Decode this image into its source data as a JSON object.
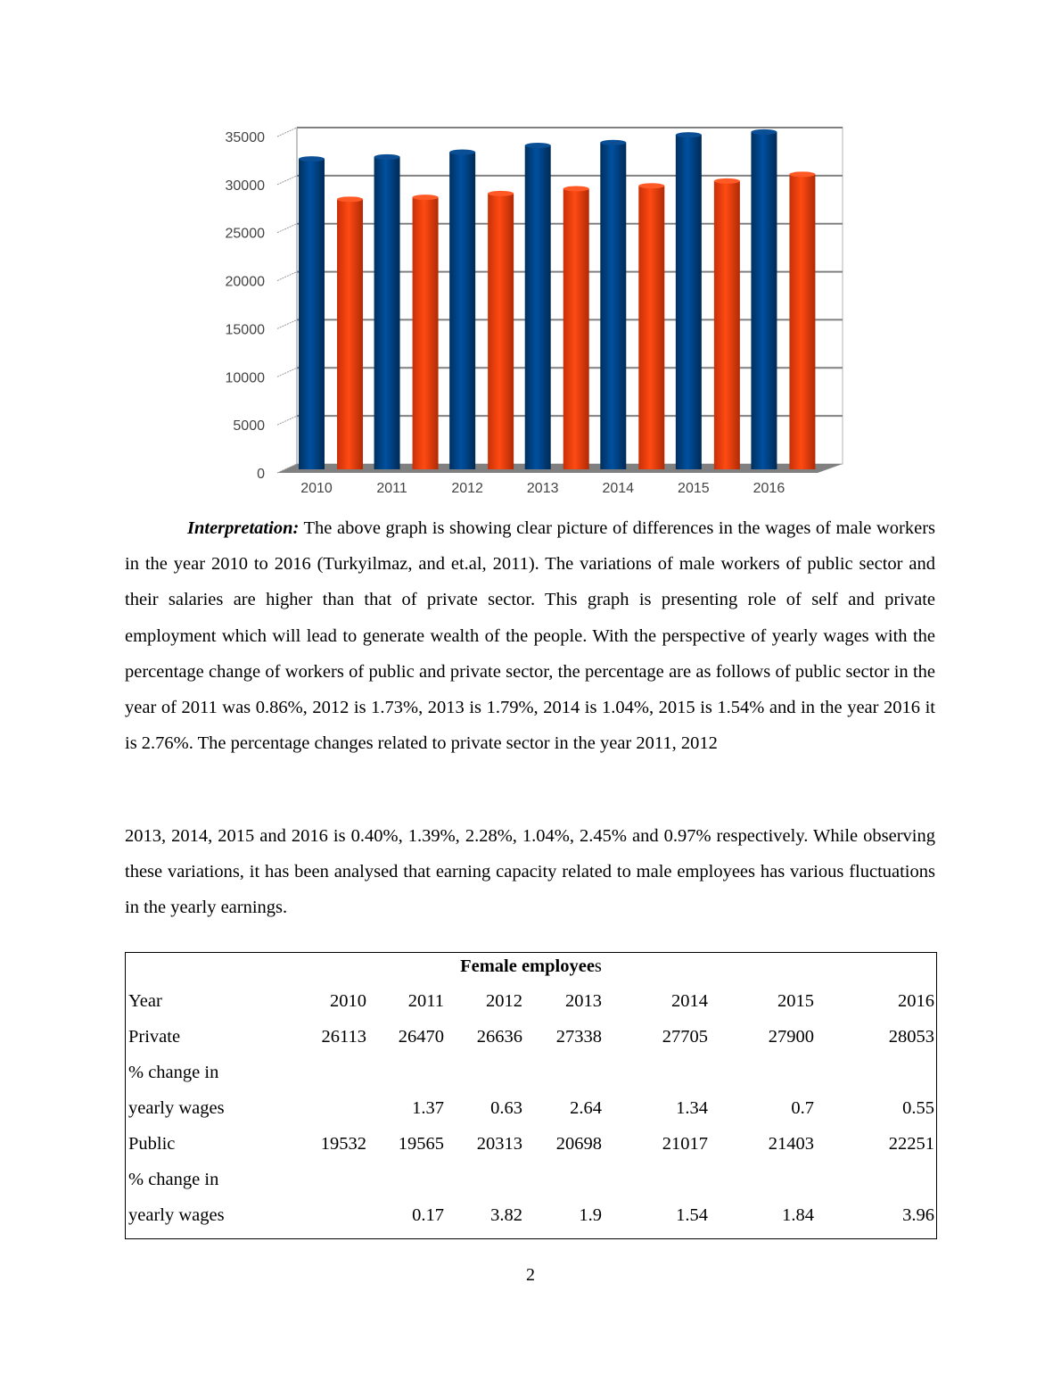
{
  "chart_data": {
    "type": "bar",
    "style": "3d-cylinder-clustered",
    "categories": [
      "2010",
      "2011",
      "2012",
      "2013",
      "2014",
      "2015",
      "2016"
    ],
    "series": [
      {
        "values": [
          31000,
          31200,
          31700,
          32400,
          32700,
          33500,
          33800
        ],
        "color": "#004586"
      },
      {
        "values": [
          26800,
          27000,
          27400,
          27900,
          28200,
          28700,
          29400
        ],
        "color": "#ff420e"
      }
    ],
    "yticks": [
      "0",
      "5000",
      "10000",
      "15000",
      "20000",
      "25000",
      "30000",
      "35000"
    ],
    "ylim": [
      0,
      35000
    ],
    "grid": true,
    "legend": "none"
  },
  "paragraph1": {
    "label": "Interpretation:",
    "text": " The above graph is showing clear picture of differences in the wages of male workers in the year 2010 to 2016 (Turkyilmaz, and et.al, 2011). The variations of male workers of public sector and their salaries are higher than that of private sector. This graph is presenting role of self and private employment which will lead to generate wealth of the people. With the perspective of yearly wages with the percentage change of workers of public and private sector, the percentage are as follows of public sector in the year of 2011 was 0.86%, 2012 is 1.73%, 2013 is 1.79%, 2014 is 1.04%, 2015 is 1.54% and in the year 2016 it is 2.76%. The percentage changes related to private sector in the year 2011, 2012"
  },
  "paragraph2": "2013, 2014, 2015 and 2016 is 0.40%, 1.39%, 2.28%, 1.04%, 2.45% and 0.97% respectively. While observing these variations, it has been analysed that earning capacity related to male employees has various fluctuations in the yearly earnings.",
  "table": {
    "title_bold": "Female employee",
    "title_rest": "s",
    "rows": [
      {
        "label": "Year",
        "cells": [
          "2010",
          "2011",
          "2012",
          "2013",
          "2014",
          "2015",
          "2016"
        ]
      },
      {
        "label": "Private",
        "cells": [
          "26113",
          "26470",
          "26636",
          "27338",
          "27705",
          "27900",
          "28053"
        ]
      },
      {
        "label": "% change in",
        "cells": [
          "",
          "",
          "",
          "",
          "",
          "",
          ""
        ]
      },
      {
        "label": "yearly wages",
        "cells": [
          "",
          "1.37",
          "0.63",
          "2.64",
          "1.34",
          "0.7",
          "0.55"
        ]
      },
      {
        "label": "Public",
        "cells": [
          "19532",
          "19565",
          "20313",
          "20698",
          "21017",
          "21403",
          "22251"
        ]
      },
      {
        "label": "% change in",
        "cells": [
          "",
          "",
          "",
          "",
          "",
          "",
          ""
        ]
      },
      {
        "label": "yearly wages",
        "cells": [
          "",
          "0.17",
          "3.82",
          "1.9",
          "1.54",
          "1.84",
          "3.96"
        ]
      }
    ]
  },
  "page_number": "2"
}
